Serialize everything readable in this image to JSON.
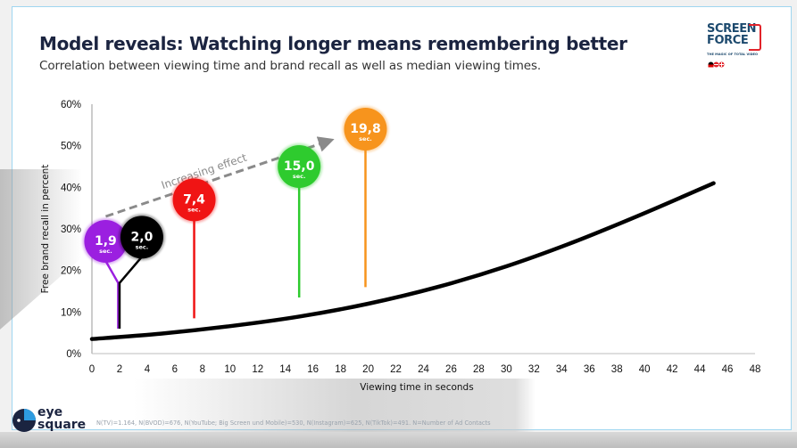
{
  "header": {
    "title": "Model reveals: Watching longer means remembering better",
    "subtitle": "Correlation between viewing time and brand recall as well as median viewing times."
  },
  "logos": {
    "screenforce": {
      "line1": "SCREEN",
      "line2": "FORCE",
      "tagline": "THE MAGIC OF TOTAL VIDEO",
      "colors": {
        "text": "#1d4a6e",
        "accent": "#e2232a"
      }
    },
    "eyesquare": {
      "line1": "eye",
      "line2": "square",
      "colors": {
        "text": "#1b2440",
        "accent": "#2e9be0"
      }
    }
  },
  "footnote": "N(TV)=1.164, N(BVOD)=676, N(YouTube; Big Screen und Mobile)=530, N(Instagram)=625, N(TikTok)=491. N=Number of Ad Contacts",
  "chart_data": {
    "type": "line",
    "title": "",
    "xlabel": "Viewing time in seconds",
    "ylabel": "Free brand recall in percent",
    "xlim": [
      0,
      48
    ],
    "ylim": [
      0,
      60
    ],
    "x_ticks": [
      "0",
      "2",
      "4",
      "6",
      "8",
      "10",
      "12",
      "14",
      "16",
      "18",
      "20",
      "22",
      "24",
      "26",
      "28",
      "30",
      "32",
      "34",
      "36",
      "38",
      "40",
      "42",
      "44",
      "46",
      "48"
    ],
    "y_ticks": [
      "0%",
      "10%",
      "20%",
      "30%",
      "40%",
      "50%",
      "60%"
    ],
    "grid": false,
    "series": [
      {
        "name": "Model curve",
        "color": "#000000",
        "x": [
          0,
          5,
          10,
          15,
          20,
          25,
          30,
          35,
          40,
          45
        ],
        "y": [
          3.5,
          4.8,
          6.6,
          8.9,
          12.0,
          16.0,
          21.0,
          27.0,
          33.8,
          41.0
        ]
      }
    ],
    "annotations": {
      "trend_arrow": {
        "label": "Increasing effect",
        "color": "#8a8a8a",
        "from": [
          1,
          33
        ],
        "to": [
          17,
          51
        ]
      },
      "median_pins": [
        {
          "value": "1,9",
          "unit": "sec.",
          "x": 1.9,
          "color": "#9b1fe0",
          "bubble_y": 27,
          "stem_bottom": 6
        },
        {
          "value": "2,0",
          "unit": "sec.",
          "x": 2.0,
          "color": "#000000",
          "bubble_y": 28,
          "stem_bottom": 6
        },
        {
          "value": "7,4",
          "unit": "sec.",
          "x": 7.4,
          "color": "#f01414",
          "bubble_y": 37,
          "stem_bottom": 8.5
        },
        {
          "value": "15,0",
          "unit": "sec.",
          "x": 15.0,
          "color": "#2ecb2e",
          "bubble_y": 45,
          "stem_bottom": 13.5
        },
        {
          "value": "19,8",
          "unit": "sec.",
          "x": 19.8,
          "color": "#f7941d",
          "bubble_y": 54,
          "stem_bottom": 16
        }
      ]
    }
  }
}
